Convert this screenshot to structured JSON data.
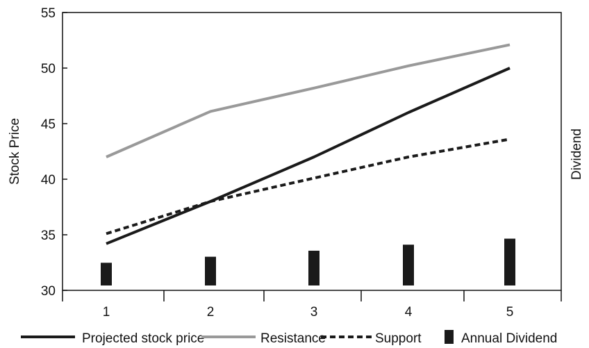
{
  "chart_data": {
    "type": "line",
    "title": "",
    "xlabel": "",
    "ylabel": "Stock Price",
    "y2label": "Dividend",
    "categories": [
      "1",
      "2",
      "3",
      "4",
      "5"
    ],
    "ylim": [
      30,
      55
    ],
    "yticks": [
      "30",
      "35",
      "40",
      "45",
      "50",
      "55"
    ],
    "grid": false,
    "legend_position": "bottom",
    "series": [
      {
        "name": "Projected stock price",
        "kind": "line",
        "style": "solid",
        "color": "#1a1a1a",
        "values": [
          34.2,
          38.0,
          42.0,
          46.0,
          50.0
        ]
      },
      {
        "name": "Resistance",
        "kind": "line",
        "style": "solid",
        "color": "#999999",
        "values": [
          42.0,
          46.1,
          48.2,
          50.2,
          52.1
        ]
      },
      {
        "name": "Support",
        "kind": "line",
        "style": "dashed",
        "color": "#1a1a1a",
        "values": [
          35.1,
          38.0,
          40.1,
          42.0,
          43.6
        ]
      },
      {
        "name": "Annual Dividend",
        "kind": "bar",
        "color": "#1a1a1a",
        "values": [
          1.0,
          1.4,
          1.8,
          2.2,
          2.6
        ]
      }
    ]
  }
}
